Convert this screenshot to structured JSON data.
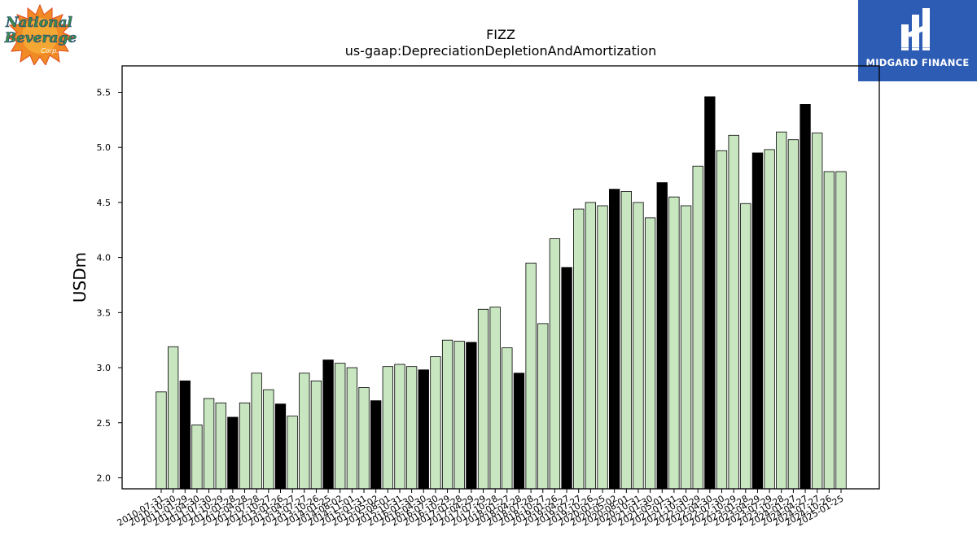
{
  "logos": {
    "left": {
      "name": "National Beverage Corp.",
      "lines": [
        "National",
        "Beverage",
        "Corp."
      ]
    },
    "right": {
      "name": "MIDGARD FINANCE"
    }
  },
  "chart_data": {
    "type": "bar",
    "title": "FIZZ",
    "subtitle": "us-gaap:DepreciationDepletionAndAmortization",
    "xlabel": "",
    "ylabel": "USDm",
    "ylim": [
      1.9,
      5.74
    ],
    "yticks": [
      "2.0",
      "2.5",
      "3.0",
      "3.5",
      "4.0",
      "4.5",
      "5.0",
      "5.5"
    ],
    "grid": false,
    "colors": {
      "default_bar": "#c8e6c0",
      "highlight_bar": "#000000",
      "edge": "#000000"
    },
    "categories": [
      "2010-07-31",
      "2010-10-30",
      "2011-01-29",
      "2011-04-30",
      "2011-07-30",
      "2011-10-29",
      "2012-01-28",
      "2012-04-28",
      "2012-07-28",
      "2012-10-27",
      "2013-01-26",
      "2013-04-27",
      "2013-07-27",
      "2013-10-26",
      "2014-01-25",
      "2014-08-02",
      "2014-11-01",
      "2015-01-31",
      "2015-05-02",
      "2015-08-01",
      "2015-10-31",
      "2016-01-30",
      "2016-04-30",
      "2016-07-30",
      "2016-10-29",
      "2017-01-28",
      "2017-04-29",
      "2017-07-29",
      "2017-10-28",
      "2018-01-27",
      "2018-04-28",
      "2018-07-28",
      "2018-10-27",
      "2019-01-26",
      "2019-04-27",
      "2019-07-27",
      "2019-10-26",
      "2020-01-25",
      "2020-05-02",
      "2020-08-01",
      "2020-10-31",
      "2021-01-30",
      "2021-05-01",
      "2021-07-31",
      "2021-10-30",
      "2022-01-29",
      "2022-04-30",
      "2022-07-30",
      "2022-10-29",
      "2023-01-28",
      "2023-04-29",
      "2023-07-29",
      "2023-10-28",
      "2024-01-27",
      "2024-04-27",
      "2024-07-27",
      "2024-10-26",
      "2025-01-25"
    ],
    "values": [
      2.78,
      3.19,
      2.88,
      2.48,
      2.72,
      2.68,
      2.55,
      2.68,
      2.95,
      2.8,
      2.67,
      2.56,
      2.95,
      2.88,
      3.07,
      3.04,
      3.0,
      2.82,
      2.7,
      3.01,
      3.03,
      3.01,
      2.98,
      3.1,
      3.25,
      3.24,
      3.23,
      3.53,
      3.55,
      3.18,
      2.95,
      3.95,
      3.4,
      4.17,
      3.91,
      4.44,
      4.5,
      4.47,
      4.62,
      4.6,
      4.5,
      4.36,
      4.68,
      4.55,
      4.47,
      4.83,
      5.46,
      4.97,
      5.11,
      4.49,
      4.95,
      4.98,
      5.14,
      5.07,
      5.39,
      5.13,
      4.78,
      4.78
    ],
    "highlighted": [
      2,
      6,
      10,
      14,
      18,
      22,
      26,
      30,
      34,
      38,
      42,
      46,
      50,
      54
    ]
  }
}
